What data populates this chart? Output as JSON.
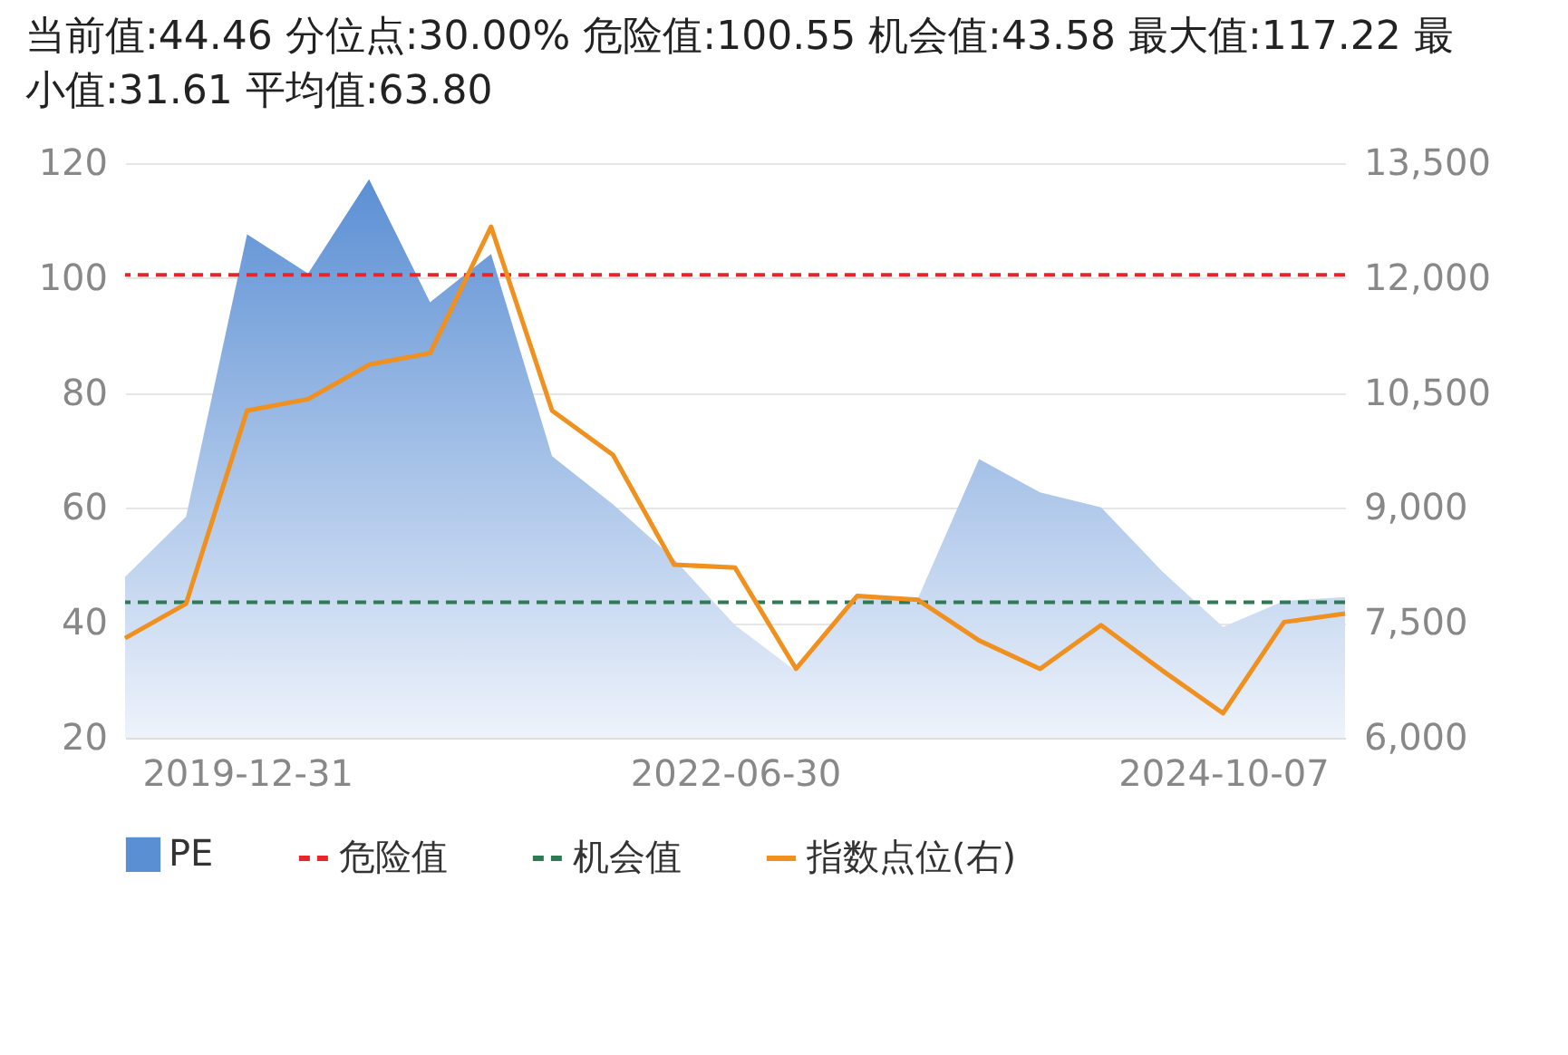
{
  "chart_data": {
    "type": "area",
    "title": "当前值:44.46 分位点:30.00% 危险值:100.55 机会值:43.58 最大值:117.22 最小值:31.61 平均值:63.80",
    "categories": [
      null,
      null,
      "2019-12-31",
      null,
      null,
      null,
      null,
      null,
      null,
      null,
      "2022-06-30",
      null,
      null,
      null,
      null,
      null,
      null,
      null,
      "2024-10-07",
      null,
      null
    ],
    "series": [
      {
        "name": "PE",
        "color": "#5b8fd4",
        "values": [
          48,
          58.5,
          107.6,
          100.8,
          117.2,
          95.8,
          104.2,
          69,
          60.6,
          51.1,
          39.6,
          31.6,
          45,
          44.3,
          68.5,
          62.7,
          60.1,
          49,
          39.3,
          43.8,
          44.5
        ]
      },
      {
        "name": "指数点位(右)",
        "type": "line",
        "axis": "y2",
        "color": "#f0901e",
        "values": [
          7300,
          7750,
          10270,
          10420,
          10870,
          11020,
          12670,
          10270,
          9690,
          8260,
          8220,
          6900,
          7850,
          7800,
          7270,
          6900,
          7470,
          6880,
          6320,
          7510,
          7620
        ]
      }
    ],
    "ylim": [
      20,
      120
    ],
    "yticks": [
      20,
      40,
      60,
      80,
      100,
      120
    ],
    "y2lim": [
      6000,
      13500
    ],
    "y2ticks": [
      {
        "value": 6000,
        "label": "6,000"
      },
      {
        "value": 7500,
        "label": "7,500"
      },
      {
        "value": 9000,
        "label": "9,000"
      },
      {
        "value": 10500,
        "label": "10,500"
      },
      {
        "value": 12000,
        "label": "12,000"
      },
      {
        "value": 13500,
        "label": "13,500"
      }
    ],
    "ref_lines": [
      {
        "axis": "y",
        "value": 100.55,
        "label": "危险值",
        "color": "#e8262a",
        "line_style": "dashed"
      },
      {
        "axis": "y",
        "value": 43.58,
        "label": "机会值",
        "color": "#2e7a55",
        "line_style": "dashed"
      }
    ],
    "grid": "y",
    "legend": "bottom"
  }
}
